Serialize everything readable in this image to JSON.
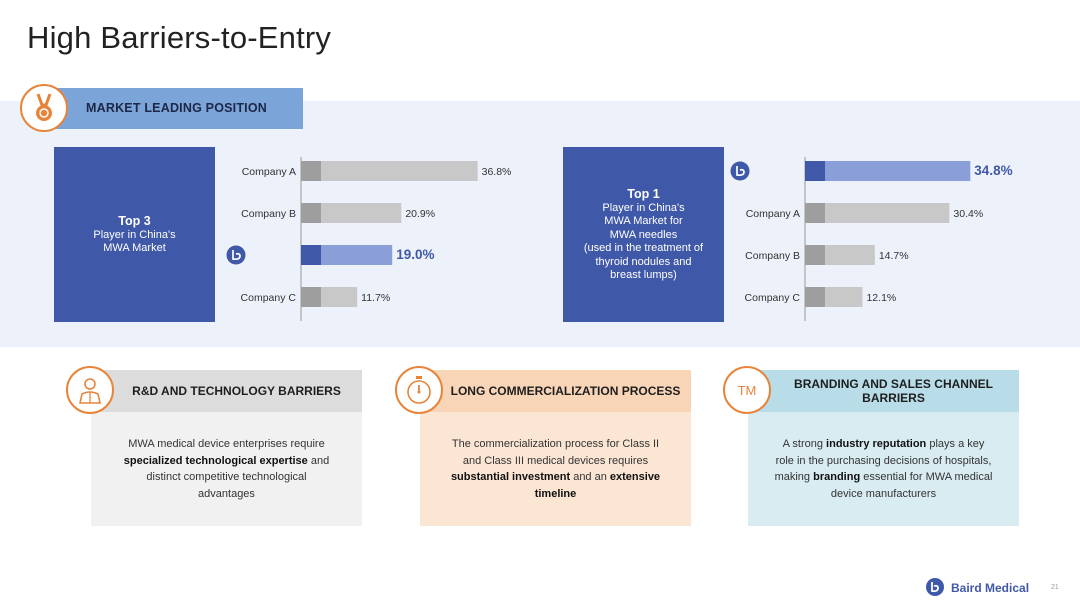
{
  "slide": {
    "title": "High Barriers-to-Entry",
    "page_number": "21"
  },
  "market": {
    "header": "MARKET LEADING POSITION",
    "left_box": {
      "rank": "Top 3",
      "desc": "Player in China's MWA Market"
    },
    "right_box": {
      "rank": "Top 1",
      "desc": "Player in China's MWA Market for MWA needles",
      "note": "(used in the treatment of thyroid nodules and breast lumps)"
    }
  },
  "chart_data": [
    {
      "type": "bar",
      "orientation": "horizontal",
      "categories": [
        "Company A",
        "Company B",
        "",
        "Company C"
      ],
      "values": [
        36.8,
        20.9,
        19.0,
        11.7
      ],
      "value_labels": [
        "36.8%",
        "20.9%",
        "19.0%",
        "11.7%"
      ],
      "highlight_index": 2,
      "xlim": [
        0,
        40
      ],
      "colors": {
        "bar": "#c8c8c8",
        "highlight": "#8a9fd8",
        "highlight_cap": "#3f58a8",
        "cap": "#9e9e9e"
      }
    },
    {
      "type": "bar",
      "orientation": "horizontal",
      "categories": [
        "",
        "Company A",
        "Company B",
        "Company C"
      ],
      "values": [
        34.8,
        30.4,
        14.7,
        12.1
      ],
      "value_labels": [
        "34.8%",
        "30.4%",
        "14.7%",
        "12.1%"
      ],
      "highlight_index": 0,
      "xlim": [
        0,
        40
      ],
      "colors": {
        "bar": "#c8c8c8",
        "highlight": "#8a9fd8",
        "highlight_cap": "#3f58a8",
        "cap": "#9e9e9e"
      }
    }
  ],
  "cards": [
    {
      "title": "R&D AND TECHNOLOGY BARRIERS",
      "icon": "person-icon",
      "body": [
        [
          "MWA medical device enterprises require ",
          false
        ],
        [
          "specialized technological expertise",
          true
        ],
        [
          " and distinct competitive technological advantages",
          false
        ]
      ]
    },
    {
      "title": "LONG COMMERCIALIZATION PROCESS",
      "icon": "stopwatch-icon",
      "body": [
        [
          "The commercialization process for Class II and Class III medical devices requires ",
          false
        ],
        [
          "substantial investment",
          true
        ],
        [
          " and an ",
          false
        ],
        [
          "extensive timeline",
          true
        ]
      ]
    },
    {
      "title": "BRANDING AND SALES CHANNEL BARRIERS",
      "icon": "trademark-icon",
      "icon_text": "TM",
      "body": [
        [
          "A strong ",
          false
        ],
        [
          "industry reputation",
          true
        ],
        [
          " plays a key role in the purchasing decisions of hospitals, making ",
          false
        ],
        [
          "branding",
          true
        ],
        [
          " essential for MWA medical device manufacturers",
          false
        ]
      ]
    }
  ],
  "footer": {
    "brand": "Baird Medical"
  }
}
